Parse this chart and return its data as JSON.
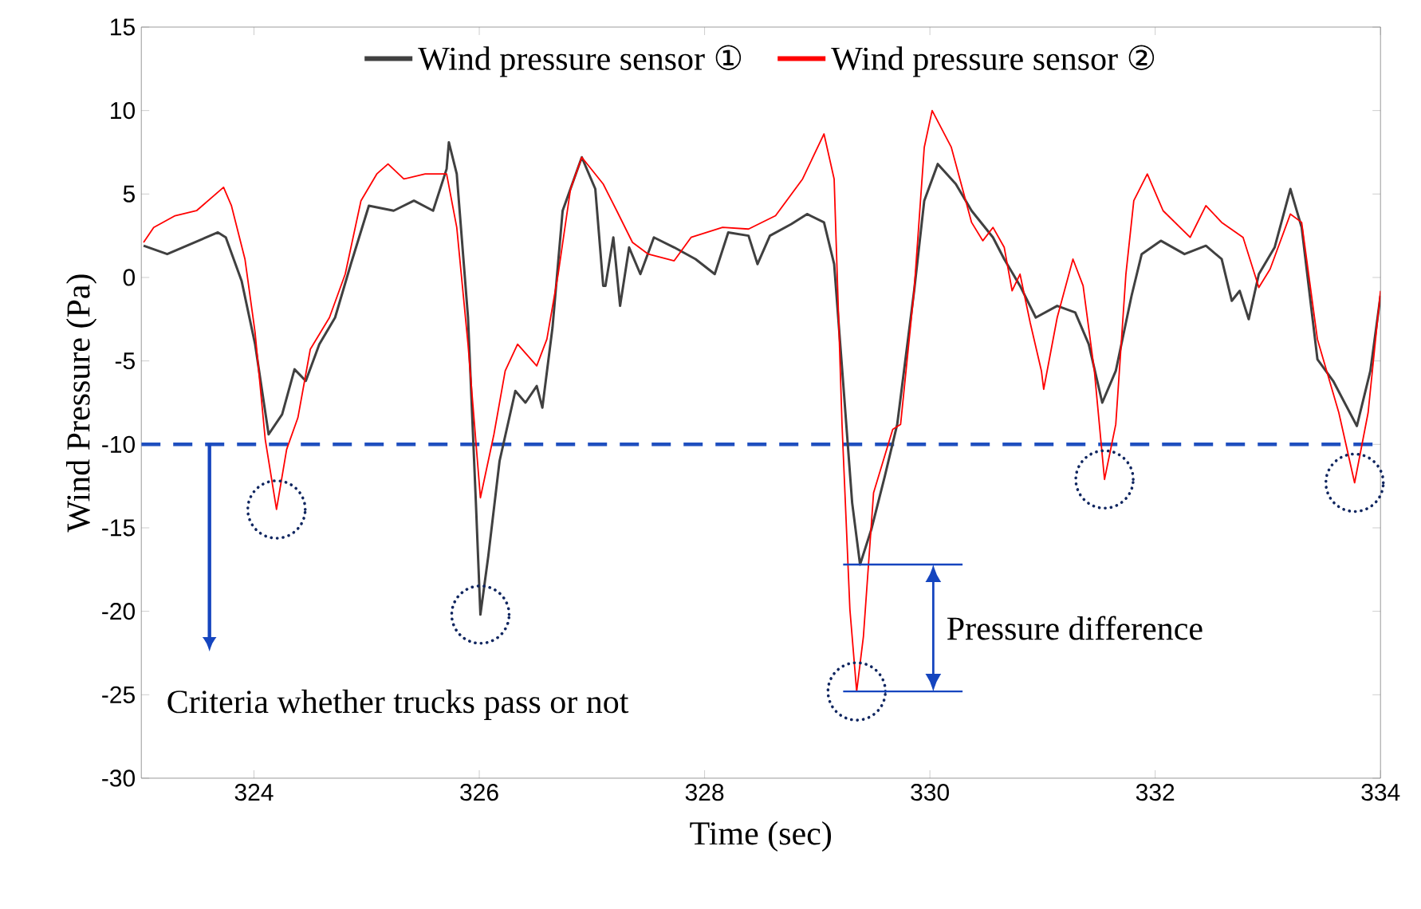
{
  "chart_data": {
    "type": "line",
    "xlabel": "Time (sec)",
    "ylabel": "Wind Pressure (Pa)",
    "xlim": [
      323,
      334
    ],
    "ylim": [
      -30,
      15
    ],
    "xticks": [
      324,
      326,
      328,
      330,
      332,
      334
    ],
    "yticks": [
      -30,
      -25,
      -20,
      -15,
      -10,
      -5,
      0,
      5,
      10,
      15
    ],
    "grid": false,
    "legend": "top",
    "series": [
      {
        "name": "Wind pressure sensor ①",
        "color": "#404040",
        "x": [
          323.02,
          323.23,
          323.68,
          323.75,
          323.89,
          324.01,
          324.13,
          324.25,
          324.36,
          324.46,
          324.58,
          324.72,
          324.86,
          325.02,
          325.24,
          325.42,
          325.59,
          325.71,
          325.73,
          325.8,
          325.9,
          325.97,
          326.01,
          326.08,
          326.18,
          326.32,
          326.41,
          326.51,
          326.56,
          326.65,
          326.74,
          326.91,
          327.03,
          327.1,
          327.12,
          327.19,
          327.25,
          327.33,
          327.43,
          327.55,
          327.73,
          327.92,
          328.09,
          328.21,
          328.39,
          328.47,
          328.58,
          328.77,
          328.91,
          329.06,
          329.15,
          329.24,
          329.31,
          329.38,
          329.48,
          329.6,
          329.71,
          329.86,
          329.95,
          330.07,
          330.23,
          330.37,
          330.56,
          330.66,
          330.8,
          330.94,
          331.13,
          331.29,
          331.41,
          331.53,
          331.65,
          331.79,
          331.88,
          332.05,
          332.26,
          332.45,
          332.59,
          332.68,
          332.75,
          332.83,
          332.92,
          333.06,
          333.2,
          333.3,
          333.44,
          333.58,
          333.79,
          333.91,
          334.0
        ],
        "values": [
          1.9,
          1.4,
          2.7,
          2.4,
          -0.2,
          -4.0,
          -9.4,
          -8.2,
          -5.5,
          -6.2,
          -4.0,
          -2.4,
          0.8,
          4.3,
          4.0,
          4.6,
          4.0,
          6.5,
          8.1,
          6.2,
          -2.4,
          -13.5,
          -20.2,
          -16.7,
          -11.0,
          -6.8,
          -7.5,
          -6.5,
          -7.8,
          -3.0,
          4.0,
          7.2,
          5.3,
          -0.5,
          -0.5,
          2.4,
          -1.7,
          1.8,
          0.2,
          2.4,
          1.8,
          1.1,
          0.2,
          2.7,
          2.5,
          0.8,
          2.5,
          3.2,
          3.8,
          3.3,
          0.8,
          -7.2,
          -13.5,
          -17.2,
          -15.1,
          -11.9,
          -8.8,
          -0.8,
          4.6,
          6.8,
          5.6,
          4.0,
          2.4,
          1.1,
          -0.5,
          -2.4,
          -1.7,
          -2.1,
          -4.0,
          -7.5,
          -5.6,
          -1.1,
          1.4,
          2.2,
          1.4,
          1.9,
          1.1,
          -1.4,
          -0.8,
          -2.5,
          0.2,
          1.8,
          5.3,
          3.0,
          -4.9,
          -6.2,
          -8.9,
          -5.6,
          -1.1
        ]
      },
      {
        "name": "Wind pressure sensor ②",
        "color": "#ff0000",
        "x": [
          323.02,
          323.11,
          323.3,
          323.49,
          323.73,
          323.8,
          323.92,
          324.01,
          324.1,
          324.2,
          324.29,
          324.39,
          324.5,
          324.67,
          324.81,
          324.95,
          325.09,
          325.19,
          325.33,
          325.52,
          325.71,
          325.8,
          325.9,
          326.01,
          326.13,
          326.23,
          326.34,
          326.51,
          326.6,
          326.7,
          326.81,
          326.91,
          327.1,
          327.22,
          327.36,
          327.5,
          327.73,
          327.88,
          328.16,
          328.39,
          328.63,
          328.87,
          329.06,
          329.15,
          329.22,
          329.29,
          329.35,
          329.41,
          329.5,
          329.67,
          329.74,
          329.86,
          329.95,
          330.02,
          330.19,
          330.37,
          330.47,
          330.56,
          330.66,
          330.73,
          330.8,
          330.89,
          330.99,
          331.01,
          331.13,
          331.27,
          331.36,
          331.46,
          331.55,
          331.65,
          331.74,
          331.81,
          331.93,
          332.07,
          332.31,
          332.45,
          332.59,
          332.78,
          332.92,
          333.02,
          333.2,
          333.3,
          333.44,
          333.63,
          333.77,
          333.89,
          334.0
        ],
        "values": [
          2.1,
          3.0,
          3.7,
          4.0,
          5.4,
          4.3,
          1.1,
          -3.3,
          -9.7,
          -13.9,
          -10.3,
          -8.4,
          -4.3,
          -2.4,
          0.2,
          4.6,
          6.2,
          6.8,
          5.9,
          6.2,
          6.2,
          3.0,
          -4.0,
          -13.2,
          -9.4,
          -5.6,
          -4.0,
          -5.3,
          -3.7,
          0.2,
          5.3,
          7.2,
          5.6,
          4.0,
          2.1,
          1.4,
          1.0,
          2.4,
          3.0,
          2.9,
          3.7,
          5.9,
          8.6,
          5.9,
          -8.8,
          -19.9,
          -24.8,
          -21.5,
          -12.9,
          -9.1,
          -8.8,
          -0.8,
          7.8,
          10.0,
          7.8,
          3.3,
          2.2,
          3.0,
          1.8,
          -0.8,
          0.2,
          -2.7,
          -5.6,
          -6.7,
          -2.4,
          1.1,
          -0.5,
          -5.6,
          -12.1,
          -8.8,
          0.2,
          4.6,
          6.2,
          4.0,
          2.4,
          4.3,
          3.3,
          2.4,
          -0.6,
          0.5,
          3.8,
          3.3,
          -3.7,
          -8.1,
          -12.3,
          -8.1,
          -0.8
        ]
      }
    ],
    "ref_lines": [
      {
        "axis": "y",
        "value": -10,
        "color": "#1f4fbf",
        "line_style": "dashed"
      }
    ],
    "annotations": [
      "Criteria whether trucks pass or not",
      "Pressure difference"
    ]
  }
}
